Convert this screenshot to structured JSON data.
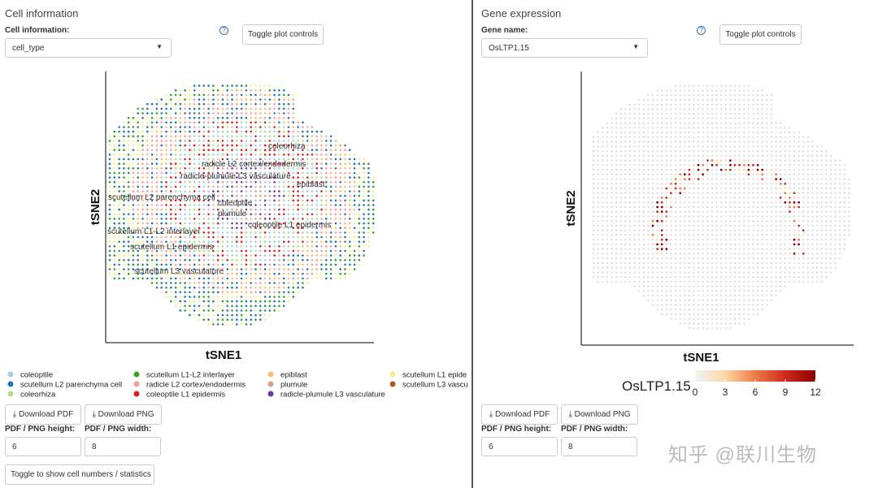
{
  "left": {
    "title": "Cell information",
    "select_label": "Cell information:",
    "select_value": "cell_type",
    "help_icon": "?",
    "toggle_button": "Toggle plot controls",
    "plot": {
      "x_label": "tSNE1",
      "y_label": "tSNE2",
      "cluster_labels": [
        "coleorhiza",
        "radicle L2 cortex/endodermis",
        "radicle-plumule L3 vasculature",
        "epiblast",
        "scutellum L2 parenchyma cell",
        "coleoptile",
        "plumule",
        "coleoptile L1 epidermis",
        "scutellum L1-L2 interlayer",
        "scutellum L1 epidermis",
        "scutellum L3 vasculature"
      ]
    },
    "legend": [
      {
        "name": "coleoptile",
        "color": "#a6cee3"
      },
      {
        "name": "scutellum L2 parenchyma cell",
        "color": "#1f78b4"
      },
      {
        "name": "coleorhiza",
        "color": "#b2df8a"
      },
      {
        "name": "scutellum L1-L2 interlayer",
        "color": "#33a02c"
      },
      {
        "name": "radicle L2 cortex/endodermis",
        "color": "#fb9a99"
      },
      {
        "name": "coleoptile L1 epidermis",
        "color": "#e31a1c"
      },
      {
        "name": "epiblast",
        "color": "#fdbf6f"
      },
      {
        "name": "plumule",
        "color": "#d9a08c"
      },
      {
        "name": "radicle-plumule L3 vasculature",
        "color": "#6a3d9a"
      },
      {
        "name": "scutellum L1 epide",
        "color": "#f5ef8a"
      },
      {
        "name": "scutellum L3 vascu",
        "color": "#b15928"
      }
    ],
    "download_pdf": "Download PDF",
    "download_png": "Download PNG",
    "height_label": "PDF / PNG height:",
    "width_label": "PDF / PNG width:",
    "height": "6",
    "width": "8",
    "stats_button": "Toggle to show cell numbers / statistics"
  },
  "right": {
    "title": "Gene expression",
    "select_label": "Gene name:",
    "select_value": "OsLTP1.15",
    "help_icon": "?",
    "toggle_button": "Toggle plot controls",
    "plot": {
      "x_label": "tSNE1",
      "y_label": "tSNE2"
    },
    "colorbar": {
      "title": "OsLTP1.15",
      "lim": [
        0,
        12
      ],
      "ticks": [
        0,
        3,
        6,
        9,
        12
      ],
      "colors": [
        "#f2f2f2",
        "#fcd9a8",
        "#ef7b45",
        "#cc2a1e",
        "#8b0000"
      ]
    },
    "download_pdf": "Download PDF",
    "download_png": "Download PNG",
    "height_label": "PDF / PNG height:",
    "width_label": "PDF / PNG width:",
    "height": "6",
    "width": "8"
  },
  "watermark": "知乎 @联川生物"
}
